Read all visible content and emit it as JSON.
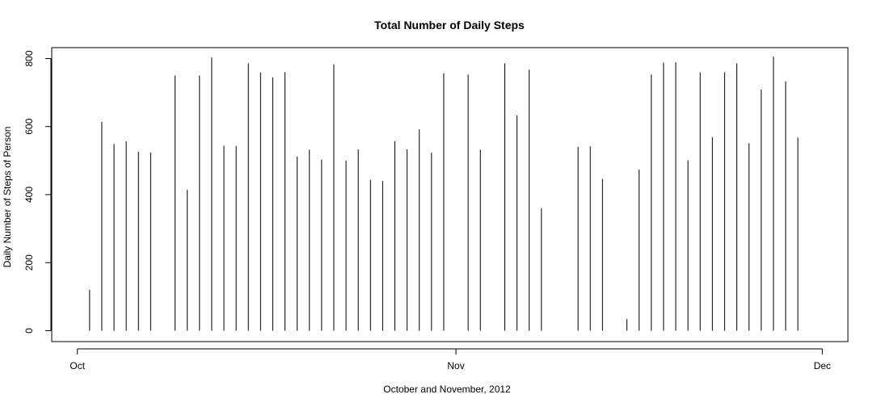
{
  "chart_data": {
    "type": "histogram-h",
    "title": "Total Number of Daily Steps",
    "xlabel": "October and November, 2012",
    "ylabel": "Daily Number of Steps of Person",
    "x_ticks": [
      {
        "day": 1,
        "label": "Oct"
      },
      {
        "day": 32,
        "label": "Nov"
      },
      {
        "day": 62,
        "label": "Dec"
      }
    ],
    "y_ticks": [
      0,
      200,
      400,
      600,
      800
    ],
    "xlim": [
      -1.1,
      64.1
    ],
    "ylim": [
      -32,
      832
    ],
    "days": [
      2,
      3,
      4,
      5,
      6,
      7,
      9,
      10,
      11,
      12,
      13,
      14,
      15,
      16,
      17,
      18,
      19,
      20,
      21,
      22,
      23,
      24,
      25,
      26,
      27,
      28,
      29,
      30,
      31,
      33,
      34,
      36,
      37,
      38,
      39,
      42,
      43,
      44,
      46,
      47,
      48,
      49,
      50,
      51,
      52,
      53,
      54,
      55,
      56,
      57,
      58,
      59,
      60
    ],
    "values": [
      120,
      614,
      549,
      557,
      526,
      524,
      750,
      414,
      750,
      803,
      544,
      543,
      786,
      759,
      745,
      760,
      512,
      532,
      503,
      783,
      500,
      533,
      444,
      440,
      557,
      533,
      592,
      523,
      757,
      753,
      532,
      786,
      633,
      767,
      360,
      540,
      542,
      446,
      34,
      474,
      753,
      788,
      789,
      501,
      759,
      569,
      760,
      786,
      551,
      709,
      806,
      733,
      568
    ]
  }
}
